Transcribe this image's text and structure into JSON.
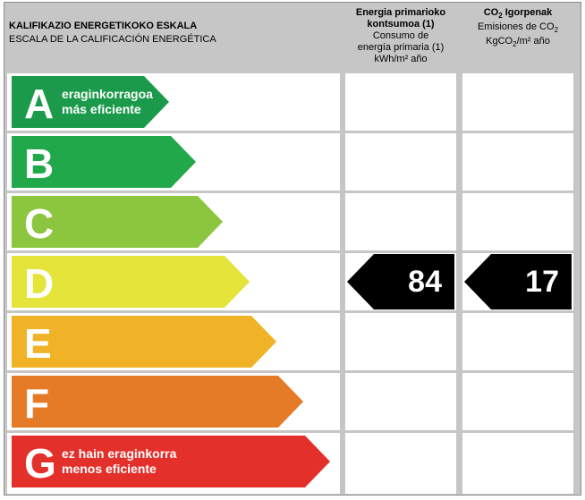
{
  "header": {
    "title": "KALIFIKAZIO ENERGETIKOKO ESKALA",
    "subtitle": "ESCALA DE LA CALIFICACIÓN ENERGÉTICA"
  },
  "columns": {
    "primary": {
      "line1": "Energia primarioko",
      "line2": "kontsumoa (1)",
      "line3": "Consumo de",
      "line4": "energía primaria (1)",
      "line5": "kWh/m² año"
    },
    "co2": {
      "co": "CO",
      "co_sub": "2",
      "line1_rest": " Igorpenak",
      "line2": "Emisiones de CO",
      "line2_sub": "2",
      "line3_a": "KgCO",
      "line3_sub": "2",
      "line3_b": "/m² año"
    }
  },
  "ratings": [
    {
      "letter": "A",
      "color": "#1a9a4a",
      "text1": "eraginkorragoa",
      "text2": "más eficiente"
    },
    {
      "letter": "B",
      "color": "#21a84a",
      "text1": "",
      "text2": ""
    },
    {
      "letter": "C",
      "color": "#8cc63e",
      "text1": "",
      "text2": ""
    },
    {
      "letter": "D",
      "color": "#e4e43a",
      "text1": "",
      "text2": ""
    },
    {
      "letter": "E",
      "color": "#f0b327",
      "text1": "",
      "text2": ""
    },
    {
      "letter": "F",
      "color": "#e57a27",
      "text1": "",
      "text2": ""
    },
    {
      "letter": "G",
      "color": "#e3302b",
      "text1": "ez hain eraginkorra",
      "text2": "menos eficiente"
    }
  ],
  "current_rating": "D",
  "primary_energy_value": "84",
  "co2_value": "17",
  "pointer_color": "#000000"
}
